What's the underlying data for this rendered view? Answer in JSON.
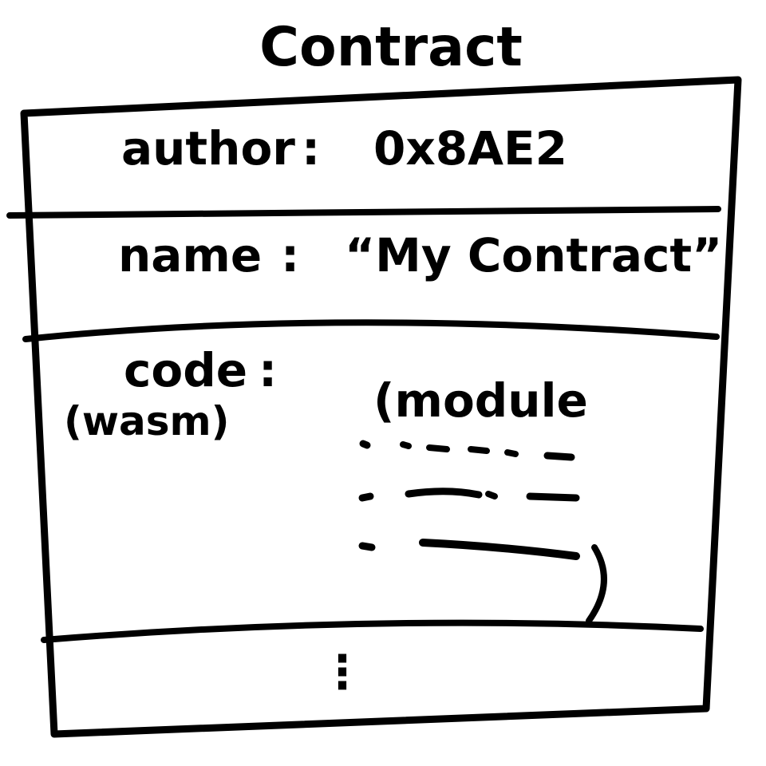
{
  "title": "Contract",
  "fields": [
    {
      "key": "author",
      "separator": ":",
      "value": "0x8AE2"
    },
    {
      "key": "name",
      "separator": ":",
      "value": "“My Contract”"
    },
    {
      "key": "code",
      "separator": ":",
      "note": "(wasm)",
      "value": "(module"
    }
  ],
  "continuation": "⋮",
  "colors": {
    "ink": "#000000",
    "paper": "#ffffff"
  }
}
